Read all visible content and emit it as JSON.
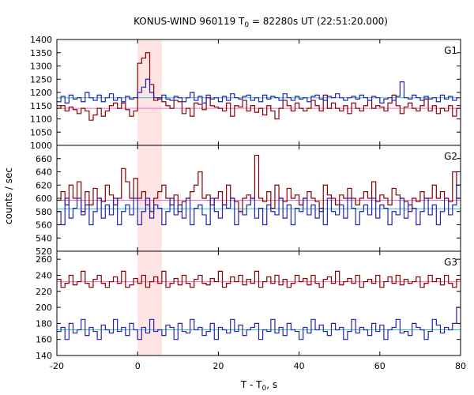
{
  "chart_data": {
    "type": "line",
    "title_main": "KONUS-WIND 960119 T",
    "title_sub": "0",
    "title_rest": " = 82280s UT (22:51:20.000)",
    "ylabel": "counts / sec",
    "xlabel_main": "T - T",
    "xlabel_sub": "0",
    "xlabel_rest": ", s",
    "xlim": [
      -20,
      80
    ],
    "x_ticks": [
      -20,
      0,
      20,
      40,
      60,
      80
    ],
    "highlight_band": [
      0,
      6
    ],
    "colors": {
      "high_energy_hist": "#8b0000",
      "low_energy_hist": "#2323b4",
      "high_energy_fit": "#ff66cc",
      "low_energy_fit": "#33bbdd",
      "highlight": "#ffe4e4",
      "highlight_peak_hist": "#5599cc"
    },
    "panels": [
      {
        "label": "G1",
        "ylim": [
          1000,
          1400
        ],
        "yticks": [
          1000,
          1050,
          1100,
          1150,
          1200,
          1250,
          1300,
          1350,
          1400
        ],
        "fit_high": 1140,
        "fit_low": 1180,
        "series": [
          {
            "name": "",
            "role": "high",
            "values": [
              1140,
              1150,
              1130,
              1145,
              1135,
              1120,
              1140,
              1130,
              1095,
              1115,
              1140,
              1110,
              1130,
              1150,
              1160,
              1140,
              1160,
              1135,
              1110,
              1130,
              1310,
              1330,
              1350,
              1230,
              1170,
              1180,
              1165,
              1150,
              1140,
              1170,
              1165,
              1120,
              1140,
              1110,
              1160,
              1155,
              1135,
              1180,
              1150,
              1145,
              1140,
              1130,
              1160,
              1110,
              1150,
              1145,
              1170,
              1130,
              1150,
              1125,
              1140,
              1115,
              1150,
              1130,
              1100,
              1140,
              1170,
              1150,
              1130,
              1160,
              1140,
              1130,
              1140,
              1170,
              1150,
              1130,
              1190,
              1140,
              1160,
              1140,
              1130,
              1150,
              1120,
              1160,
              1140,
              1130,
              1150,
              1170,
              1140,
              1150,
              1145,
              1130,
              1160,
              1190,
              1150,
              1120,
              1145,
              1160,
              1140,
              1130,
              1150,
              1175,
              1130,
              1150,
              1120,
              1140,
              1130,
              1150,
              1110,
              1140
            ]
          },
          {
            "name": "",
            "role": "low",
            "values": [
              1165,
              1185,
              1160,
              1190,
              1175,
              1180,
              1165,
              1200,
              1180,
              1170,
              1190,
              1165,
              1180,
              1195,
              1170,
              1180,
              1165,
              1185,
              1175,
              1180,
              1200,
              1220,
              1250,
              1200,
              1180,
              1175,
              1190,
              1175,
              1170,
              1185,
              1180,
              1165,
              1180,
              1200,
              1170,
              1185,
              1160,
              1190,
              1175,
              1180,
              1165,
              1185,
              1170,
              1195,
              1180,
              1175,
              1185,
              1190,
              1170,
              1180,
              1165,
              1190,
              1175,
              1185,
              1180,
              1170,
              1195,
              1180,
              1170,
              1185,
              1175,
              1180,
              1165,
              1185,
              1190,
              1175,
              1170,
              1185,
              1180,
              1195,
              1180,
              1170,
              1180,
              1185,
              1175,
              1190,
              1180,
              1170,
              1185,
              1180,
              1160,
              1175,
              1180,
              1170,
              1185,
              1240,
              1180,
              1175,
              1190,
              1180,
              1170,
              1185,
              1175,
              1180,
              1165,
              1190,
              1175,
              1185,
              1170,
              1180
            ]
          }
        ]
      },
      {
        "label": "G2",
        "ylim": [
          520,
          680
        ],
        "yticks": [
          520,
          540,
          560,
          580,
          600,
          620,
          640,
          660
        ],
        "fit_high": 597,
        "fit_low": 584,
        "series": [
          {
            "name": "",
            "role": "high",
            "values": [
              597,
              610,
              590,
              620,
              600,
              625,
              580,
              610,
              590,
              615,
              600,
              595,
              620,
              605,
              590,
              600,
              645,
              625,
              600,
              630,
              600,
              610,
              590,
              580,
              600,
              610,
              620,
              600,
              590,
              605,
              580,
              595,
              600,
              610,
              620,
              640,
              600,
              605,
              590,
              600,
              610,
              590,
              620,
              600,
              595,
              580,
              600,
              605,
              600,
              665,
              600,
              595,
              610,
              585,
              620,
              600,
              595,
              615,
              600,
              605,
              590,
              600,
              610,
              600,
              595,
              580,
              620,
              605,
              600,
              590,
              605,
              600,
              615,
              600,
              590,
              600,
              610,
              600,
              625,
              595,
              605,
              600,
              590,
              615,
              605,
              600,
              595,
              580,
              600,
              595,
              610,
              600,
              600,
              620,
              600,
              610,
              600,
              595,
              640,
              600
            ]
          },
          {
            "name": "",
            "role": "low",
            "values": [
              580,
              560,
              600,
              570,
              585,
              600,
              575,
              590,
              560,
              580,
              600,
              570,
              590,
              575,
              600,
              560,
              580,
              590,
              575,
              600,
              560,
              580,
              600,
              570,
              590,
              585,
              560,
              580,
              600,
              575,
              590,
              570,
              600,
              560,
              585,
              590,
              575,
              560,
              600,
              580,
              570,
              590,
              585,
              600,
              560,
              580,
              575,
              590,
              600,
              570,
              585,
              560,
              590,
              580,
              575,
              600,
              570,
              590,
              560,
              585,
              580,
              600,
              575,
              590,
              570,
              585,
              560,
              600,
              580,
              575,
              590,
              570,
              600,
              585,
              560,
              580,
              590,
              575,
              600,
              570,
              590,
              585,
              560,
              580,
              575,
              600,
              570,
              590,
              585,
              560,
              580,
              600,
              575,
              590,
              560,
              580,
              600,
              575,
              590,
              620
            ]
          }
        ]
      },
      {
        "label": "G3",
        "ylim": [
          140,
          270
        ],
        "yticks": [
          140,
          160,
          180,
          200,
          220,
          240,
          260
        ],
        "fit_high": 232,
        "fit_low": 172,
        "series": [
          {
            "name": "",
            "role": "high",
            "values": [
              235,
              225,
              230,
              240,
              228,
              232,
              245,
              230,
              225,
              235,
              240,
              230,
              225,
              232,
              238,
              230,
              245,
              225,
              228,
              236,
              230,
              240,
              225,
              232,
              238,
              230,
              245,
              225,
              230,
              236,
              228,
              240,
              230,
              225,
              235,
              240,
              230,
              228,
              236,
              232,
              245,
              225,
              230,
              238,
              232,
              240,
              228,
              235,
              230,
              245,
              225,
              232,
              238,
              230,
              240,
              228,
              235,
              225,
              230,
              240,
              232,
              236,
              228,
              240,
              230,
              225,
              235,
              238,
              230,
              245,
              228,
              232,
              236,
              230,
              240,
              225,
              232,
              235,
              230,
              240,
              225,
              232,
              238,
              230,
              240,
              228,
              235,
              230,
              232,
              238,
              225,
              230,
              240,
              232,
              236,
              228,
              240,
              230,
              225,
              235
            ]
          },
          {
            "name": "",
            "role": "low",
            "values": [
              170,
              175,
              160,
              180,
              168,
              172,
              185,
              165,
              175,
              170,
              160,
              178,
              172,
              168,
              185,
              170,
              175,
              165,
              180,
              172,
              160,
              175,
              168,
              185,
              170,
              172,
              165,
              178,
              175,
              160,
              180,
              170,
              168,
              185,
              172,
              175,
              165,
              170,
              180,
              160,
              175,
              172,
              168,
              185,
              170,
              178,
              165,
              172,
              175,
              180,
              160,
              172,
              170,
              185,
              168,
              175,
              165,
              180,
              172,
              170,
              160,
              175,
              168,
              185,
              172,
              178,
              170,
              165,
              180,
              172,
              175,
              160,
              170,
              185,
              168,
              175,
              172,
              165,
              180,
              170,
              178,
              160,
              172,
              175,
              185,
              168,
              170,
              165,
              180,
              175,
              172,
              160,
              170,
              185,
              178,
              168,
              175,
              172,
              180,
              200
            ]
          }
        ]
      }
    ]
  }
}
